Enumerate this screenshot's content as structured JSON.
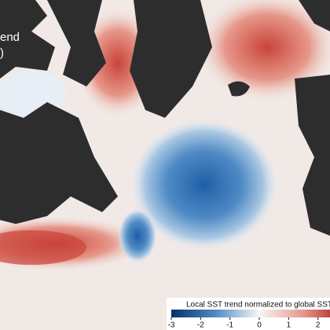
{
  "overlay_text": [
    "end",
    ")"
  ],
  "colorbar": {
    "title": "Local SST trend normalized to global SST",
    "lim": [
      -3,
      3
    ],
    "ticks": [
      -3,
      -2,
      -1,
      0,
      1,
      2
    ]
  }
}
